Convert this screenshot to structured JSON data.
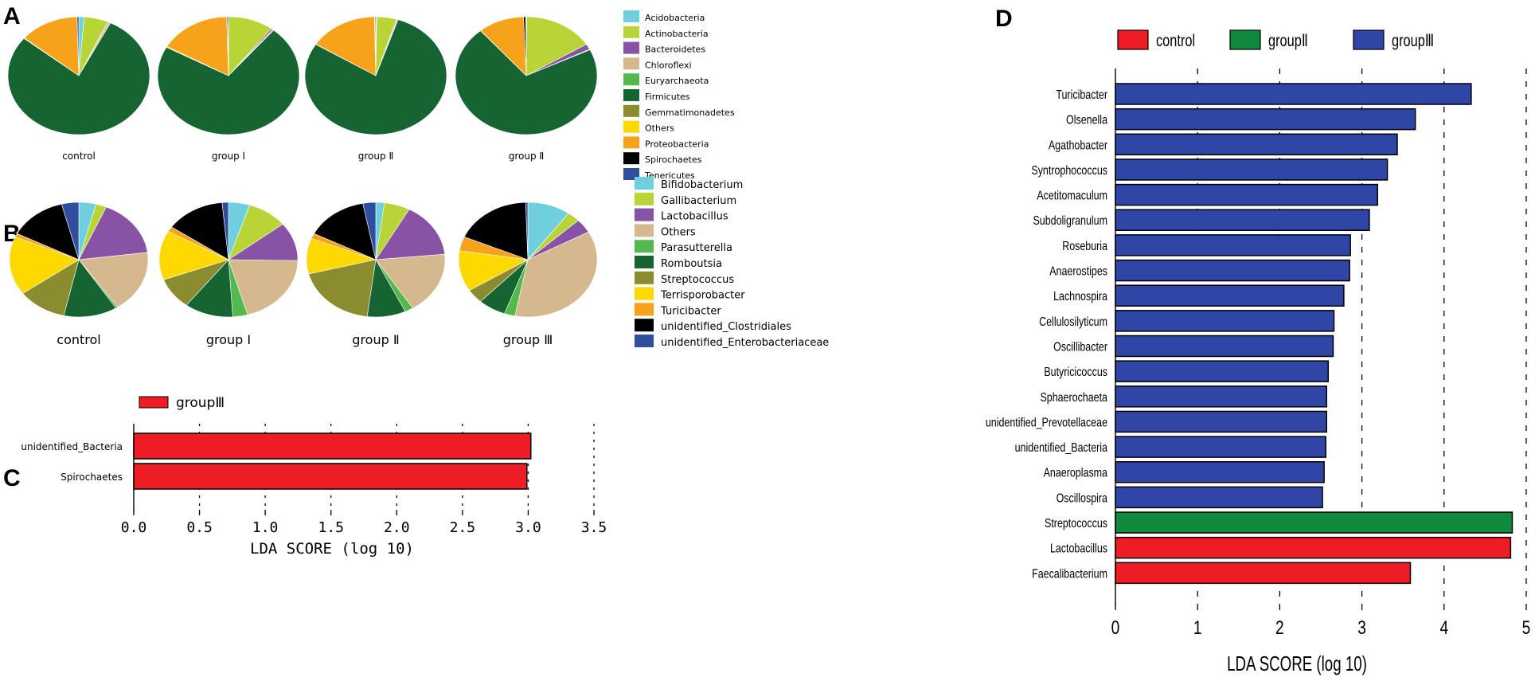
{
  "panel_letters": {
    "a": "A",
    "b": "B",
    "c": "C",
    "d": "D"
  },
  "chart_data": [
    {
      "type": "pie",
      "title": "",
      "groups": [
        "control",
        "group Ⅰ",
        "group Ⅱ",
        "group Ⅱ"
      ],
      "categories": [
        "Acidobacteria",
        "Actinobacteria",
        "Bacteroidetes",
        "Chloroflexi",
        "Euryarchaeota",
        "Firmicutes",
        "Gemmatimonadetes",
        "Others",
        "Proteobacteria",
        "Spirochaetes",
        "Tenericutes"
      ],
      "colors": [
        "#6ecfdf",
        "#b9d437",
        "#8853a5",
        "#d6b88e",
        "#53b84e",
        "#156432",
        "#8b8b2f",
        "#ffd800",
        "#f7a21b",
        "#000000",
        "#2f4f9e"
      ],
      "series": [
        {
          "name": "control",
          "values": [
            1.2,
            5.5,
            0.2,
            0.5,
            0.0,
            78.5,
            0.0,
            0.2,
            13.5,
            0.0,
            0.4
          ]
        },
        {
          "name": "group Ⅰ",
          "values": [
            0.0,
            10.3,
            0.4,
            0.3,
            0.0,
            72.0,
            0.0,
            0.3,
            16.3,
            0.2,
            0.2
          ]
        },
        {
          "name": "group Ⅱ",
          "values": [
            0.2,
            4.5,
            0.2,
            0.2,
            0.0,
            78.8,
            0.0,
            0.1,
            15.7,
            0.1,
            0.2
          ]
        },
        {
          "name": "group Ⅱ",
          "values": [
            0.1,
            16.0,
            1.5,
            0.2,
            0.0,
            71.0,
            0.0,
            0.1,
            10.5,
            0.5,
            0.1
          ]
        }
      ]
    },
    {
      "type": "pie",
      "title": "",
      "groups": [
        "control",
        "group Ⅰ",
        "group Ⅱ",
        "group Ⅲ"
      ],
      "categories": [
        "Bifidobacterium",
        "Gallibacterium",
        "Lactobacillus",
        "Others",
        "Parasutterella",
        "Romboutsia",
        "Streptococcus",
        "Terrisporobacter",
        "Turicibacter",
        "unidentified_Clostridiales",
        "unidentified_Enterobacteriaceae"
      ],
      "colors": [
        "#6ecfdf",
        "#b9d437",
        "#8853a5",
        "#d6b88e",
        "#53b84e",
        "#156432",
        "#8b8b2f",
        "#ffd800",
        "#f7a21b",
        "#000000",
        "#2f4f9e"
      ],
      "series": [
        {
          "name": "control",
          "values": [
            4.0,
            2.5,
            16.5,
            17.5,
            0.5,
            12.5,
            11.5,
            16.5,
            1.0,
            13.5,
            4.0
          ]
        },
        {
          "name": "group Ⅰ",
          "values": [
            5.0,
            9.5,
            11.0,
            20.5,
            3.5,
            11.5,
            9.0,
            14.0,
            1.5,
            14.0,
            1.5
          ]
        },
        {
          "name": "group Ⅱ",
          "values": [
            2.0,
            6.0,
            15.5,
            17.5,
            2.0,
            9.0,
            19.0,
            10.0,
            1.5,
            14.5,
            3.0
          ]
        },
        {
          "name": "group Ⅲ",
          "values": [
            10.0,
            3.0,
            4.0,
            36.0,
            2.5,
            6.5,
            4.0,
            11.5,
            4.0,
            18.0,
            0.5
          ]
        }
      ]
    },
    {
      "type": "bar",
      "orientation": "horizontal",
      "legend": [
        {
          "name": "groupⅢ",
          "color": "#ee1c25"
        }
      ],
      "categories": [
        "unidentified_Bacteria",
        "Spirochaetes"
      ],
      "values": [
        3.02,
        2.99
      ],
      "colors": [
        "#ee1c25",
        "#ee1c25"
      ],
      "xlabel": "LDA SCORE (log 10)",
      "ylabel": "",
      "xlim": [
        0,
        3.5
      ],
      "xticks": [
        "0.0",
        "0.5",
        "1.0",
        "1.5",
        "2.0",
        "2.5",
        "3.0",
        "3.5"
      ],
      "grid": "vertical dotted"
    },
    {
      "type": "bar",
      "orientation": "horizontal",
      "legend": [
        {
          "name": "control",
          "color": "#ee1c25"
        },
        {
          "name": "groupⅡ",
          "color": "#0f8a3c"
        },
        {
          "name": "groupⅢ",
          "color": "#2f46a6"
        }
      ],
      "categories": [
        "Turicibacter",
        "Olsenella",
        "Agathobacter",
        "Syntrophococcus",
        "Acetitomaculum",
        "Subdoligranulum",
        "Roseburia",
        "Anaerostipes",
        "Lachnospira",
        "Cellulosilyticum",
        "Oscillibacter",
        "Butyricicoccus",
        "Sphaerochaeta",
        "unidentified_Prevotellaceae",
        "unidentified_Bacteria",
        "Anaeroplasma",
        "Oscillospira",
        "Streptococcus",
        "Lactobacillus",
        "Faecalibacterium"
      ],
      "values": [
        4.33,
        3.65,
        3.43,
        3.31,
        3.19,
        3.09,
        2.86,
        2.85,
        2.78,
        2.66,
        2.65,
        2.59,
        2.57,
        2.57,
        2.56,
        2.54,
        2.52,
        4.83,
        4.81,
        3.59
      ],
      "colors": [
        "#2f46a6",
        "#2f46a6",
        "#2f46a6",
        "#2f46a6",
        "#2f46a6",
        "#2f46a6",
        "#2f46a6",
        "#2f46a6",
        "#2f46a6",
        "#2f46a6",
        "#2f46a6",
        "#2f46a6",
        "#2f46a6",
        "#2f46a6",
        "#2f46a6",
        "#2f46a6",
        "#2f46a6",
        "#0f8a3c",
        "#ee1c25",
        "#ee1c25"
      ],
      "xlabel": "LDA SCORE (log 10)",
      "ylabel": "",
      "xlim": [
        0,
        5
      ],
      "xticks": [
        "0",
        "1",
        "2",
        "3",
        "4",
        "5"
      ],
      "grid": "vertical dashed"
    }
  ]
}
